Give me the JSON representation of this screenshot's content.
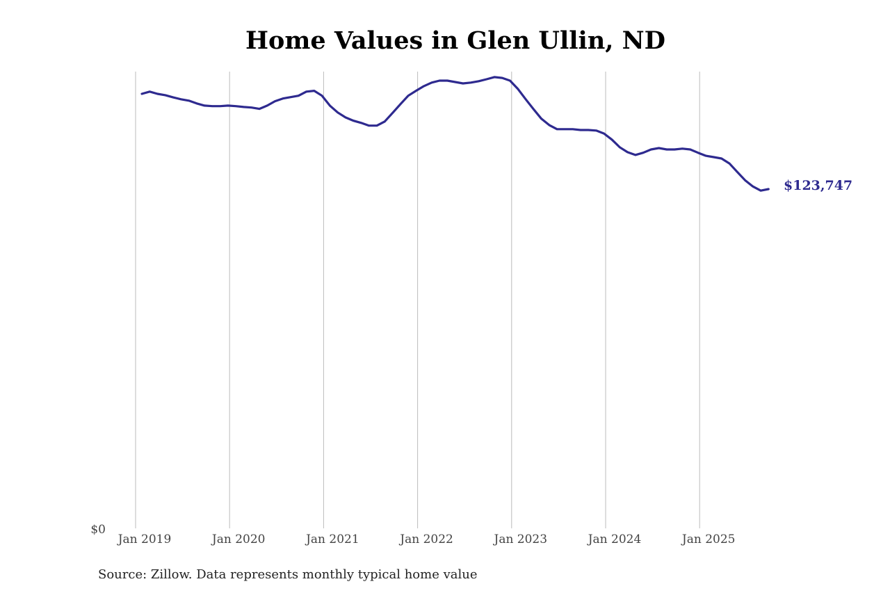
{
  "title": "Home Values in Glen Ullin, ND",
  "source": "Source: Zillow. Data represents monthly typical home value",
  "end_label": "$123,747",
  "colors": {
    "line": "#2e2a8f",
    "grid": "#bbbbbb",
    "text": "#444444"
  },
  "chart_data": {
    "type": "line",
    "title": "Home Values in Glen Ullin, ND",
    "xlabel": "",
    "ylabel": "",
    "ylim": [
      0,
      167000
    ],
    "grid": {
      "vertical": true,
      "horizontal": false
    },
    "y_ticks": [
      "$0"
    ],
    "x_ticks": [
      "Jan 2019",
      "Jan 2020",
      "Jan 2021",
      "Jan 2022",
      "Jan 2023",
      "Jan 2024",
      "Jan 2025"
    ],
    "annotation": {
      "text": "$123,747",
      "position": "end of line"
    },
    "series": [
      {
        "name": "Typical home value",
        "start": "2019-01",
        "end": "2025-09",
        "frequency": "monthly",
        "values": [
          158500,
          159300,
          158500,
          158000,
          157200,
          156500,
          156000,
          155000,
          154200,
          154000,
          154000,
          154200,
          154000,
          153700,
          153500,
          153000,
          154200,
          155800,
          156800,
          157300,
          157800,
          159300,
          159600,
          157800,
          154200,
          151700,
          149900,
          148700,
          147900,
          146900,
          146900,
          148400,
          151500,
          154700,
          157800,
          159600,
          161300,
          162600,
          163300,
          163300,
          162800,
          162300,
          162600,
          163100,
          163800,
          164600,
          164300,
          163300,
          160300,
          156500,
          152900,
          149400,
          147100,
          145600,
          145600,
          145600,
          145300,
          145300,
          145100,
          144000,
          141800,
          139000,
          137200,
          136200,
          137000,
          138200,
          138700,
          138200,
          138200,
          138500,
          138200,
          137000,
          135900,
          135400,
          134900,
          133100,
          130000,
          127000,
          124700,
          123200,
          123747
        ]
      }
    ]
  }
}
